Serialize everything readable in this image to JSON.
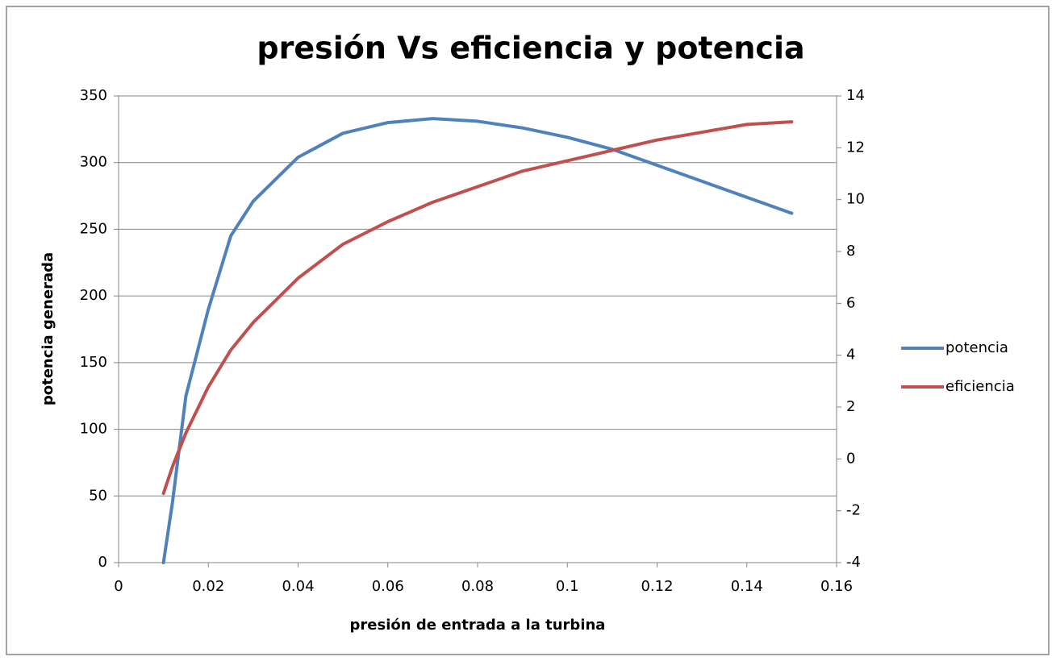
{
  "chart_data": {
    "type": "line",
    "title": "presión Vs eficiencia y potencia",
    "xlabel": "presión de entrada a la turbina",
    "ylabel": "potencia generada",
    "x": [
      0.01,
      0.012,
      0.015,
      0.02,
      0.025,
      0.03,
      0.04,
      0.05,
      0.06,
      0.07,
      0.08,
      0.09,
      0.1,
      0.11,
      0.12,
      0.13,
      0.14,
      0.15
    ],
    "series": [
      {
        "name": "potencia",
        "color": "#4f81bd",
        "values": [
          0,
          45,
          125,
          190,
          245,
          271,
          304,
          322,
          330,
          333,
          331,
          326,
          319,
          310,
          298,
          286,
          274,
          262
        ]
      },
      {
        "name": "eficiencia",
        "color": "#c0504d",
        "axis": "y2",
        "values": [
          -1.33,
          -0.3,
          1.0,
          2.78,
          4.2,
          5.26,
          6.97,
          8.28,
          9.15,
          9.9,
          10.5,
          11.1,
          11.5,
          11.9,
          12.3,
          12.6,
          12.9,
          13.0
        ]
      }
    ],
    "xlim": [
      0,
      0.16
    ],
    "xticks": [
      0,
      0.02,
      0.04,
      0.06,
      0.08,
      0.1,
      0.12,
      0.14,
      0.16
    ],
    "ylim": [
      0,
      350
    ],
    "yticks": [
      0,
      50,
      100,
      150,
      200,
      250,
      300,
      350
    ],
    "y2lim": [
      -4,
      14
    ],
    "y2ticks": [
      -4,
      -2,
      0,
      2,
      4,
      6,
      8,
      10,
      12,
      14
    ],
    "grid": true,
    "legend": "right"
  }
}
